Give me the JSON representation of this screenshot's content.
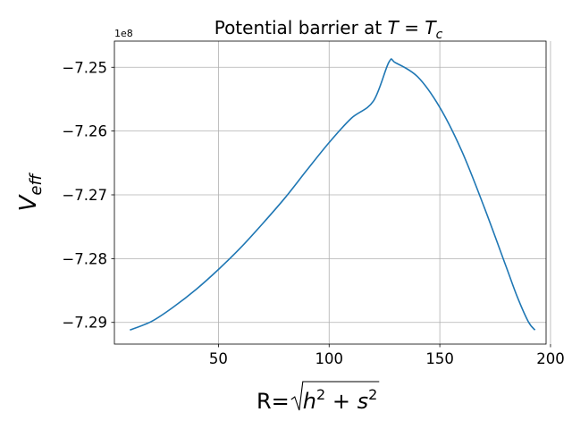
{
  "chart_data": {
    "type": "line",
    "title_prefix": "Potential barrier at ",
    "title_math": {
      "T": "T",
      "eq": " = ",
      "Tc_base": "T",
      "Tc_sub": "c"
    },
    "xlabel_prefix": "R=",
    "xlabel_math": {
      "h": "h",
      "s": "s",
      "exp": "2",
      "plus": " + "
    },
    "ylabel_math": {
      "base": "V",
      "sub": "eff"
    },
    "y_offset_text": "1e8",
    "xlim": [
      3,
      198
    ],
    "ylim": [
      -7.2934,
      -7.2459
    ],
    "x_ticks": [
      50,
      100,
      150,
      200
    ],
    "x_tick_labels": [
      "50",
      "100",
      "150",
      "200"
    ],
    "y_ticks": [
      -7.29,
      -7.28,
      -7.27,
      -7.26,
      -7.25
    ],
    "y_tick_labels": [
      "−7.29",
      "−7.28",
      "−7.27",
      "−7.26",
      "−7.25"
    ],
    "grid": true,
    "line_color": "#1f77b4",
    "grid_color": "#b0b0b0",
    "series": [
      {
        "x": [
          10,
          20,
          30,
          40,
          50,
          60,
          70,
          80,
          90,
          100,
          110,
          120,
          127,
          130,
          140,
          150,
          160,
          170,
          180,
          185,
          190,
          193
        ],
        "y": [
          -7.2912,
          -7.2898,
          -7.2875,
          -7.2848,
          -7.2817,
          -7.2783,
          -7.2745,
          -7.2705,
          -7.2661,
          -7.2618,
          -7.258,
          -7.2553,
          -7.2492,
          -7.2493,
          -7.2515,
          -7.2563,
          -7.2632,
          -7.2719,
          -7.2813,
          -7.286,
          -7.2899,
          -7.2912
        ]
      }
    ]
  }
}
